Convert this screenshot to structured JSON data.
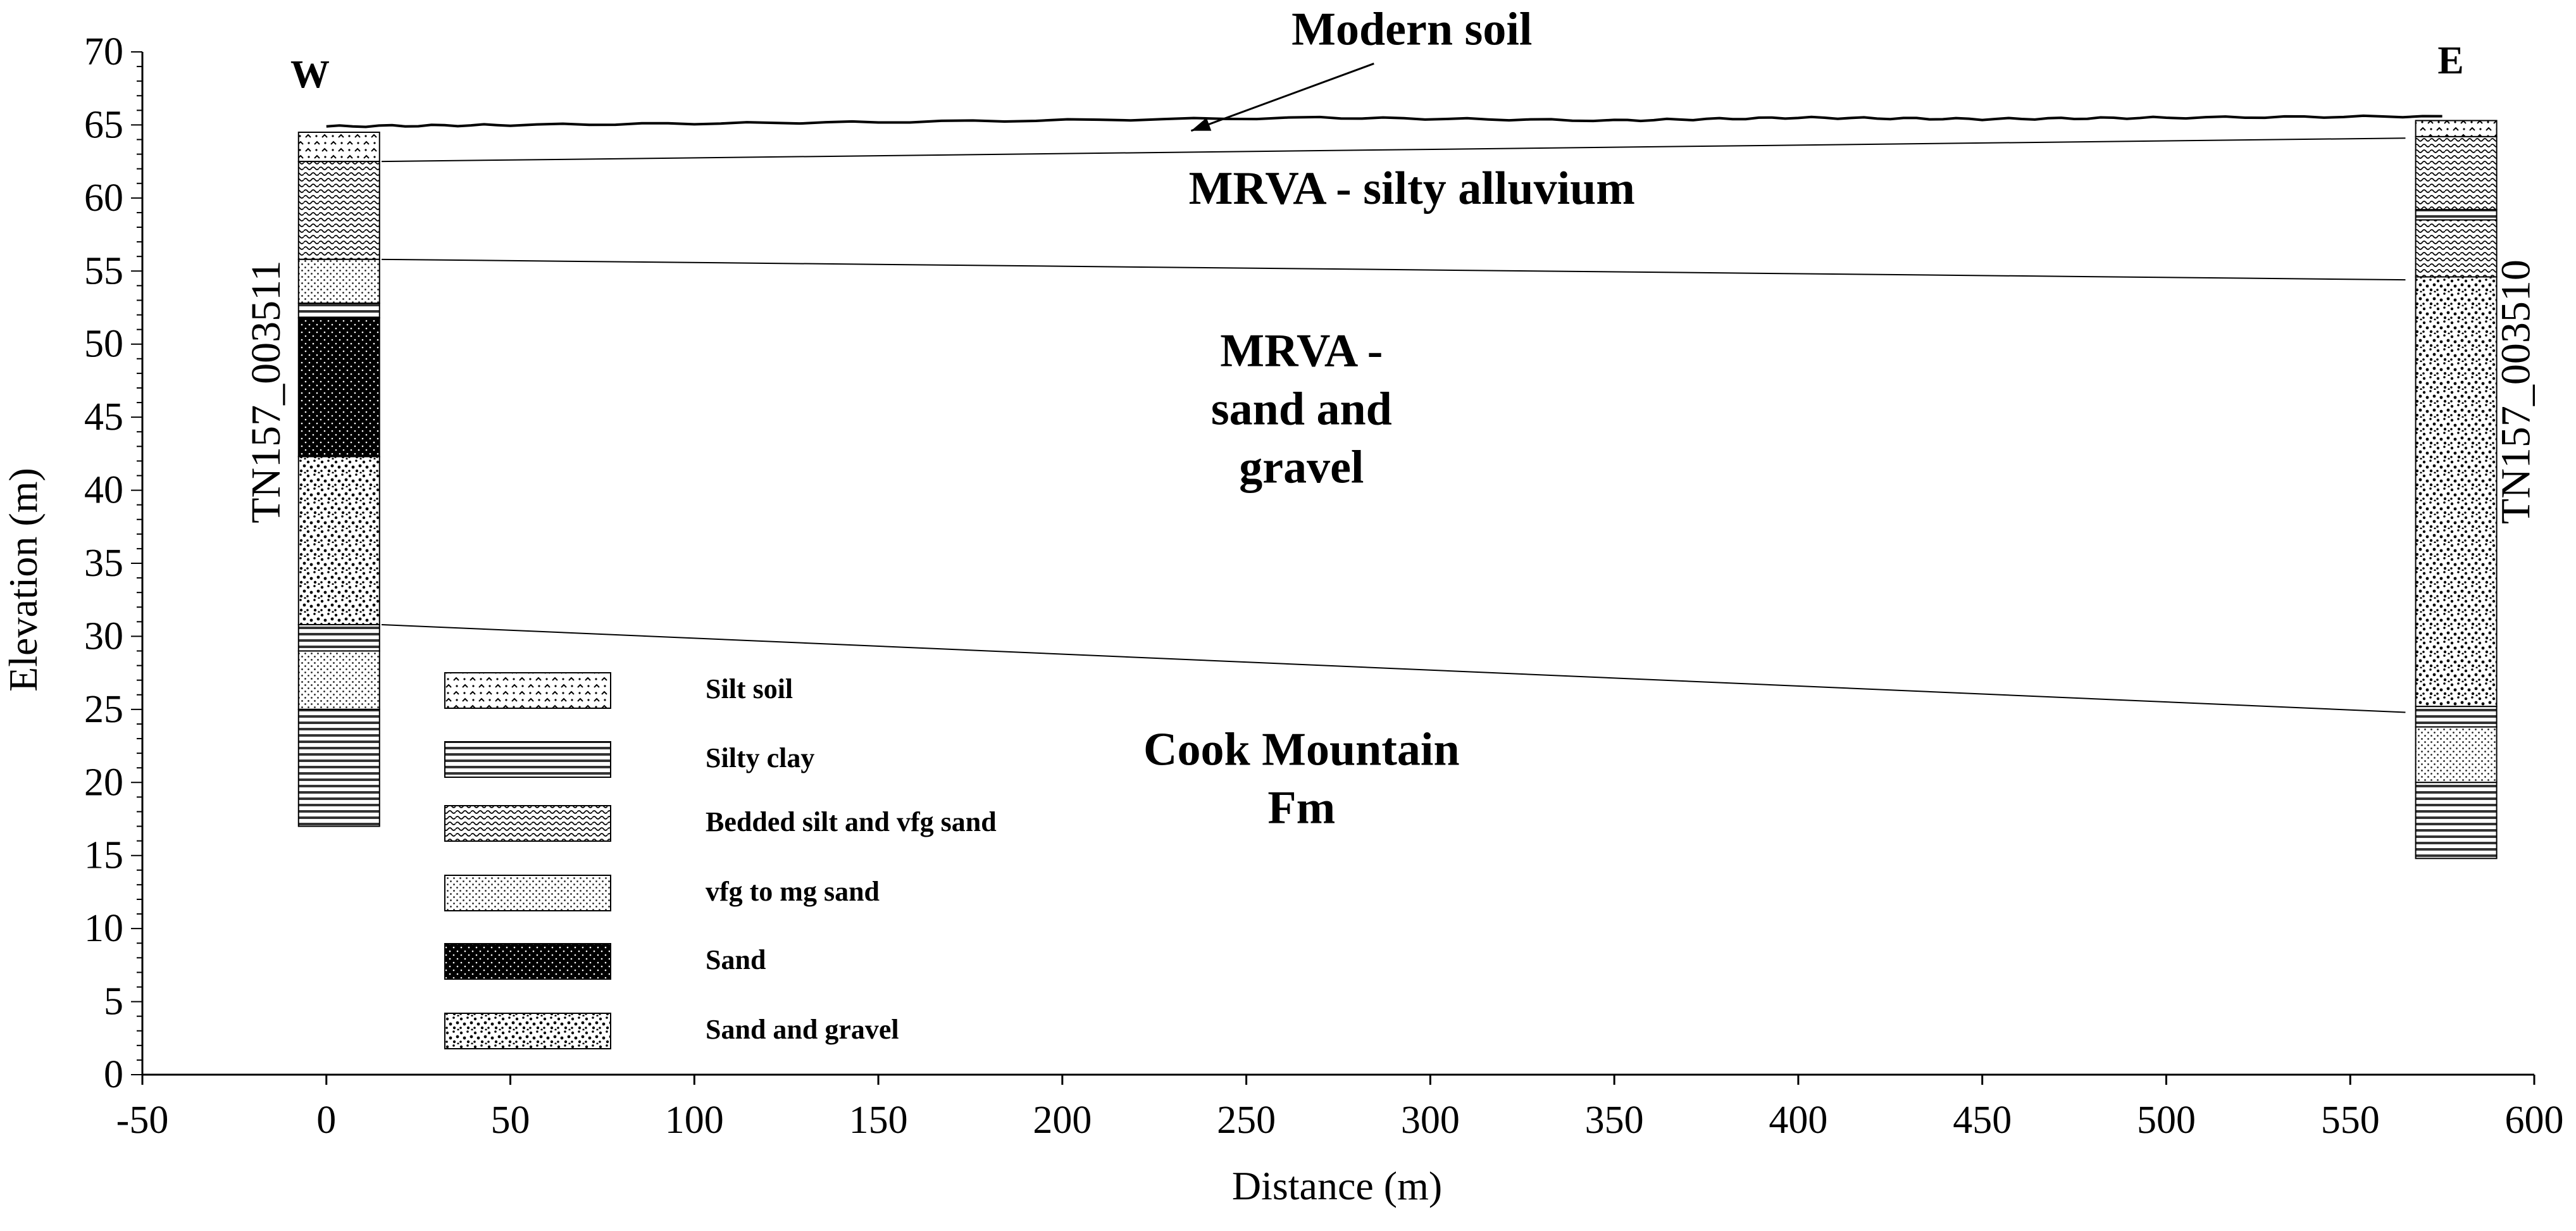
{
  "chart_data": {
    "type": "geologic cross-section",
    "xlabel": "Distance (m)",
    "ylabel": "Elevation (m)",
    "xlim": [
      -50,
      600
    ],
    "ylim": [
      0,
      70
    ],
    "xticks": [
      -50,
      0,
      50,
      100,
      150,
      200,
      250,
      300,
      350,
      400,
      450,
      500,
      550,
      600
    ],
    "yticks": [
      0,
      5,
      10,
      15,
      20,
      25,
      30,
      35,
      40,
      45,
      50,
      55,
      60,
      65,
      70
    ],
    "grid": false,
    "direction_labels": {
      "west": "W",
      "east": "E"
    },
    "wells": [
      {
        "name": "TN157_003511",
        "distance": 0,
        "intervals": [
          {
            "top": 64.5,
            "bottom": 62.5,
            "lithology": "Silt soil"
          },
          {
            "top": 62.5,
            "bottom": 55.8,
            "lithology": "Bedded silt and vfg sand"
          },
          {
            "top": 55.8,
            "bottom": 52.8,
            "lithology": "vfg to mg sand"
          },
          {
            "top": 52.8,
            "bottom": 51.8,
            "lithology": "Silty clay"
          },
          {
            "top": 51.8,
            "bottom": 42.3,
            "lithology": "Sand"
          },
          {
            "top": 42.3,
            "bottom": 30.8,
            "lithology": "Sand and gravel"
          },
          {
            "top": 30.8,
            "bottom": 29.0,
            "lithology": "Silty clay"
          },
          {
            "top": 29.0,
            "bottom": 25.0,
            "lithology": "vfg to mg sand"
          },
          {
            "top": 25.0,
            "bottom": 17.0,
            "lithology": "Silty clay"
          }
        ]
      },
      {
        "name": "TN157_003510",
        "distance": 575,
        "intervals": [
          {
            "top": 65.3,
            "bottom": 64.2,
            "lithology": "Silt soil"
          },
          {
            "top": 64.2,
            "bottom": 59.2,
            "lithology": "Bedded silt and vfg sand"
          },
          {
            "top": 59.2,
            "bottom": 58.5,
            "lithology": "Silty clay"
          },
          {
            "top": 58.5,
            "bottom": 54.6,
            "lithology": "Bedded silt and vfg sand"
          },
          {
            "top": 54.6,
            "bottom": 25.2,
            "lithology": "Sand and gravel"
          },
          {
            "top": 25.2,
            "bottom": 23.8,
            "lithology": "Silty clay"
          },
          {
            "top": 23.8,
            "bottom": 20.0,
            "lithology": "vfg to mg sand"
          },
          {
            "top": 20.0,
            "bottom": 14.8,
            "lithology": "Silty clay"
          }
        ]
      }
    ],
    "surfaces": [
      {
        "name": "ground surface",
        "points": [
          [
            0,
            64.9
          ],
          [
            50,
            65.0
          ],
          [
            150,
            65.2
          ],
          [
            270,
            65.5
          ],
          [
            350,
            65.3
          ],
          [
            400,
            65.5
          ],
          [
            450,
            65.4
          ],
          [
            500,
            65.5
          ],
          [
            575,
            65.6
          ]
        ]
      },
      {
        "name": "base of modern soil",
        "points": [
          [
            15,
            62.5
          ],
          [
            565,
            64.1
          ]
        ]
      },
      {
        "name": "top of sand and gravel",
        "points": [
          [
            15,
            55.8
          ],
          [
            565,
            54.4
          ]
        ]
      },
      {
        "name": "top of Cook Mountain Fm",
        "points": [
          [
            15,
            30.8
          ],
          [
            565,
            24.8
          ]
        ]
      }
    ],
    "unit_labels": [
      {
        "lines": [
          "Modern soil"
        ],
        "x": 295,
        "y": 70.5,
        "arrow_to": [
          235,
          64.6
        ]
      },
      {
        "lines": [
          "MRVA - silty alluvium"
        ],
        "x": 295,
        "y": 59.6
      },
      {
        "lines": [
          "MRVA -",
          "sand and",
          "gravel"
        ],
        "x": 265,
        "y": 48.5
      },
      {
        "lines": [
          "Cook Mountain",
          "Fm"
        ],
        "x": 265,
        "y": 21.2
      }
    ],
    "legend": {
      "placement": "lower-left",
      "items": [
        {
          "label": "Silt soil",
          "pattern": "silt-soil"
        },
        {
          "label": "Silty clay",
          "pattern": "silty-clay"
        },
        {
          "label": "Bedded silt and vfg sand",
          "pattern": "bedded"
        },
        {
          "label": "vfg to mg sand",
          "pattern": "vfg"
        },
        {
          "label": "Sand",
          "pattern": "sand"
        },
        {
          "label": "Sand and gravel",
          "pattern": "sand-gravel"
        }
      ]
    }
  }
}
